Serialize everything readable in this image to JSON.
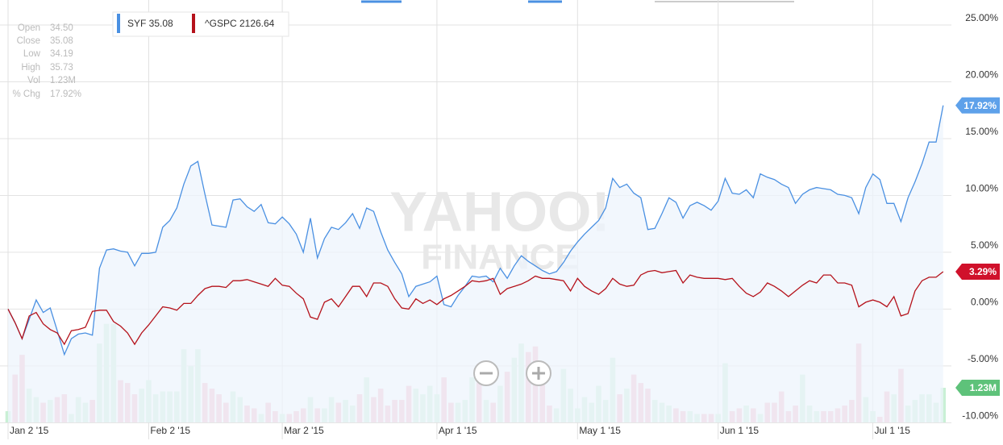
{
  "info": [
    [
      "Open",
      "34.50"
    ],
    [
      "Close",
      "35.08"
    ],
    [
      "Low",
      "34.19"
    ],
    [
      "High",
      "35.73"
    ],
    [
      "Vol",
      "1.23M"
    ],
    [
      "% Chg",
      "17.92%"
    ]
  ],
  "watermark": [
    "YAHOO!",
    "FINANCE"
  ],
  "chart_data": {
    "type": "line",
    "categories": [
      "Jan 2 '15",
      null,
      null,
      null,
      null,
      null,
      null,
      null,
      null,
      null,
      null,
      null,
      null,
      null,
      null,
      null,
      null,
      null,
      null,
      null,
      "Feb 2 '15",
      null,
      null,
      null,
      null,
      null,
      null,
      null,
      null,
      null,
      null,
      null,
      null,
      null,
      null,
      null,
      null,
      null,
      null,
      "Mar 2 '15",
      null,
      null,
      null,
      null,
      null,
      null,
      null,
      null,
      null,
      null,
      null,
      null,
      null,
      null,
      null,
      null,
      null,
      null,
      null,
      null,
      null,
      "Apr 1 '15",
      null,
      null,
      null,
      null,
      null,
      null,
      null,
      null,
      null,
      null,
      null,
      null,
      null,
      null,
      null,
      null,
      null,
      null,
      null,
      "May 1 '15",
      null,
      null,
      null,
      null,
      null,
      null,
      null,
      null,
      null,
      null,
      null,
      null,
      null,
      null,
      null,
      null,
      null,
      null,
      null,
      "Jun 1 '15",
      null,
      null,
      null,
      null,
      null,
      null,
      null,
      null,
      null,
      null,
      null,
      null,
      null,
      null,
      null,
      null,
      null,
      null,
      null,
      null,
      null,
      "Jul 1 '15",
      null,
      null,
      null,
      null,
      null,
      null,
      null,
      null,
      null,
      null
    ],
    "ylim": [
      -10.4,
      27.2
    ],
    "yticks": [
      {
        "value": -10,
        "label": "-10.00%"
      },
      {
        "value": -5,
        "label": "-5.00%"
      },
      {
        "value": 0,
        "label": "0.00%"
      },
      {
        "value": 5,
        "label": "5.00%"
      },
      {
        "value": 10,
        "label": "10.00%"
      },
      {
        "value": 15,
        "label": "15.00%"
      },
      {
        "value": 20,
        "label": "20.00%"
      },
      {
        "value": 25,
        "label": "25.00%"
      }
    ],
    "grid": true,
    "series": [
      {
        "name": "SYF 35.08",
        "color": "#4a90e2",
        "area_color": "#eef4fc",
        "tag_color": "#5ea1ea",
        "last_label": "17.92%",
        "values": [
          0,
          -1.2,
          -2.6,
          -0.9,
          0.8,
          -0.3,
          0.1,
          -1.9,
          -4.0,
          -2.6,
          -2.2,
          -2.1,
          -2.3,
          3.6,
          5.2,
          5.3,
          5.1,
          5.0,
          3.8,
          4.9,
          4.9,
          5.0,
          7.2,
          7.8,
          8.9,
          11.0,
          12.6,
          13.0,
          10.1,
          7.4,
          7.3,
          7.2,
          9.6,
          9.7,
          9.0,
          8.6,
          9.2,
          7.6,
          7.5,
          8.1,
          7.5,
          6.6,
          5.0,
          8.0,
          4.5,
          6.2,
          7.2,
          7.0,
          7.6,
          8.4,
          7.1,
          8.9,
          8.6,
          6.8,
          5.2,
          4.1,
          3.1,
          1.1,
          2.0,
          2.2,
          2.4,
          2.9,
          0.4,
          0.2,
          1.2,
          2.0,
          2.9,
          2.8,
          2.9,
          2.4,
          3.6,
          2.7,
          3.8,
          4.7,
          4.2,
          3.8,
          3.4,
          3.1,
          3.3,
          4.1,
          5.1,
          5.9,
          6.6,
          7.2,
          7.8,
          8.9,
          11.5,
          10.7,
          11.0,
          10.2,
          9.8,
          7.0,
          7.1,
          8.4,
          9.8,
          9.4,
          8.0,
          9.1,
          9.4,
          9.1,
          8.7,
          9.5,
          11.5,
          10.2,
          10.1,
          10.5,
          9.8,
          11.9,
          11.6,
          11.4,
          11.0,
          10.7,
          9.3,
          10.1,
          10.5,
          10.7,
          10.6,
          10.5,
          10.1,
          10.0,
          9.8,
          8.4,
          10.7,
          11.9,
          11.4,
          9.3,
          9.3,
          7.7,
          9.8,
          11.2,
          12.8,
          14.7,
          14.7,
          17.92
        ]
      },
      {
        "name": "^GSPC 2126.64",
        "color": "#b5121b",
        "tag_color": "#d0112b",
        "last_label": "3.29%",
        "values": [
          0,
          -1.2,
          -2.6,
          -0.6,
          -0.3,
          -1.3,
          -1.8,
          -2.1,
          -3.1,
          -1.9,
          -1.8,
          -1.6,
          -0.2,
          -0.1,
          -0.1,
          -1.1,
          -1.5,
          -2.1,
          -3.1,
          -2.1,
          -1.4,
          -0.6,
          0.2,
          0.1,
          -0.1,
          0.5,
          0.5,
          1.2,
          1.8,
          2.0,
          2.0,
          1.9,
          2.5,
          2.5,
          2.6,
          2.4,
          2.2,
          2.0,
          2.7,
          2.1,
          2.0,
          1.4,
          0.9,
          -0.7,
          -0.9,
          0.6,
          0.9,
          0.2,
          1.1,
          2.0,
          2.0,
          1.1,
          2.3,
          2.3,
          2.0,
          0.9,
          0.1,
          0.0,
          0.9,
          0.5,
          0.8,
          0.4,
          0.9,
          1.2,
          1.6,
          2.0,
          2.5,
          2.4,
          2.5,
          2.7,
          1.3,
          1.8,
          2.0,
          2.2,
          2.5,
          2.9,
          2.7,
          2.7,
          2.6,
          2.5,
          1.6,
          2.7,
          2.0,
          1.6,
          1.3,
          1.8,
          2.7,
          2.2,
          2.0,
          2.1,
          3.0,
          3.3,
          3.4,
          3.2,
          3.3,
          3.4,
          2.3,
          3.0,
          2.8,
          2.7,
          2.7,
          2.7,
          2.6,
          2.7,
          2.0,
          1.4,
          1.1,
          1.5,
          2.3,
          2.0,
          1.6,
          1.1,
          1.6,
          2.1,
          2.5,
          2.3,
          3.0,
          3.0,
          2.3,
          2.3,
          2.1,
          0.2,
          0.6,
          0.8,
          0.6,
          0.2,
          1.1,
          -0.6,
          -0.4,
          1.6,
          2.5,
          2.8,
          2.8,
          3.29
        ]
      }
    ],
    "volume": {
      "ylim": [
        0,
        15
      ],
      "up_color": "#c9f0d5",
      "down_color": "#f6b9c6",
      "tag_color": "#5ec27a",
      "last_label": "1.23M",
      "values": [
        0.4,
        1.7,
        2.4,
        1.2,
        0.9,
        0.7,
        0.8,
        0.9,
        1.0,
        0.3,
        0.9,
        0.7,
        0.8,
        2.8,
        3.5,
        3.5,
        1.5,
        1.4,
        1.0,
        1.2,
        1.5,
        1.0,
        1.1,
        1.1,
        1.1,
        2.6,
        2.0,
        2.6,
        1.4,
        1.2,
        1.0,
        0.7,
        1.1,
        0.9,
        0.6,
        0.5,
        0.3,
        0.7,
        0.4,
        0.3,
        0.3,
        0.4,
        0.5,
        0.9,
        0.5,
        0.5,
        0.9,
        0.7,
        0.8,
        0.6,
        1.0,
        1.6,
        0.9,
        1.2,
        0.6,
        0.8,
        0.8,
        1.3,
        1.2,
        1.0,
        1.3,
        1.0,
        1.6,
        0.7,
        0.7,
        0.8,
        1.6,
        1.4,
        0.8,
        0.7,
        1.3,
        1.8,
        2.3,
        2.8,
        2.5,
        2.7,
        1.8,
        0.6,
        0.5,
        1.9,
        1.2,
        0.5,
        0.9,
        0.7,
        1.3,
        0.8,
        2.3,
        1.0,
        1.2,
        1.7,
        1.4,
        1.2,
        0.8,
        0.7,
        0.6,
        0.5,
        0.4,
        0.4,
        0.3,
        0.3,
        0.3,
        0.3,
        2.1,
        0.4,
        0.5,
        0.6,
        0.5,
        0.3,
        0.7,
        0.7,
        1.1,
        0.4,
        0.6,
        1.7,
        0.6,
        0.4,
        0.4,
        0.4,
        0.5,
        0.6,
        0.8,
        2.8,
        0.9,
        0.4,
        0.2,
        1.1,
        1.0,
        1.9,
        0.6,
        0.8,
        1.0,
        1.0,
        0.7,
        1.23
      ]
    }
  }
}
